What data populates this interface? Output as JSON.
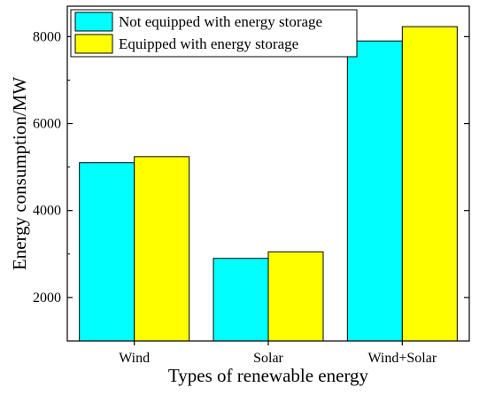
{
  "chart_data": {
    "type": "bar",
    "title": "",
    "xlabel": "Types of renewable energy",
    "ylabel": "Energy consumption/MW",
    "categories": [
      "Wind",
      "Solar",
      "Wind+Solar"
    ],
    "series": [
      {
        "name": "Not equipped with energy storage",
        "color": "#00FFFF",
        "values": [
          5100,
          2900,
          7900
        ]
      },
      {
        "name": "Equipped with energy storage",
        "color": "#FFFF00",
        "values": [
          5240,
          3050,
          8230
        ]
      }
    ],
    "ylim": [
      1000,
      8700
    ],
    "yticks": [
      2000,
      4000,
      6000,
      8000
    ],
    "grid": false,
    "legend_position": "top-left"
  }
}
